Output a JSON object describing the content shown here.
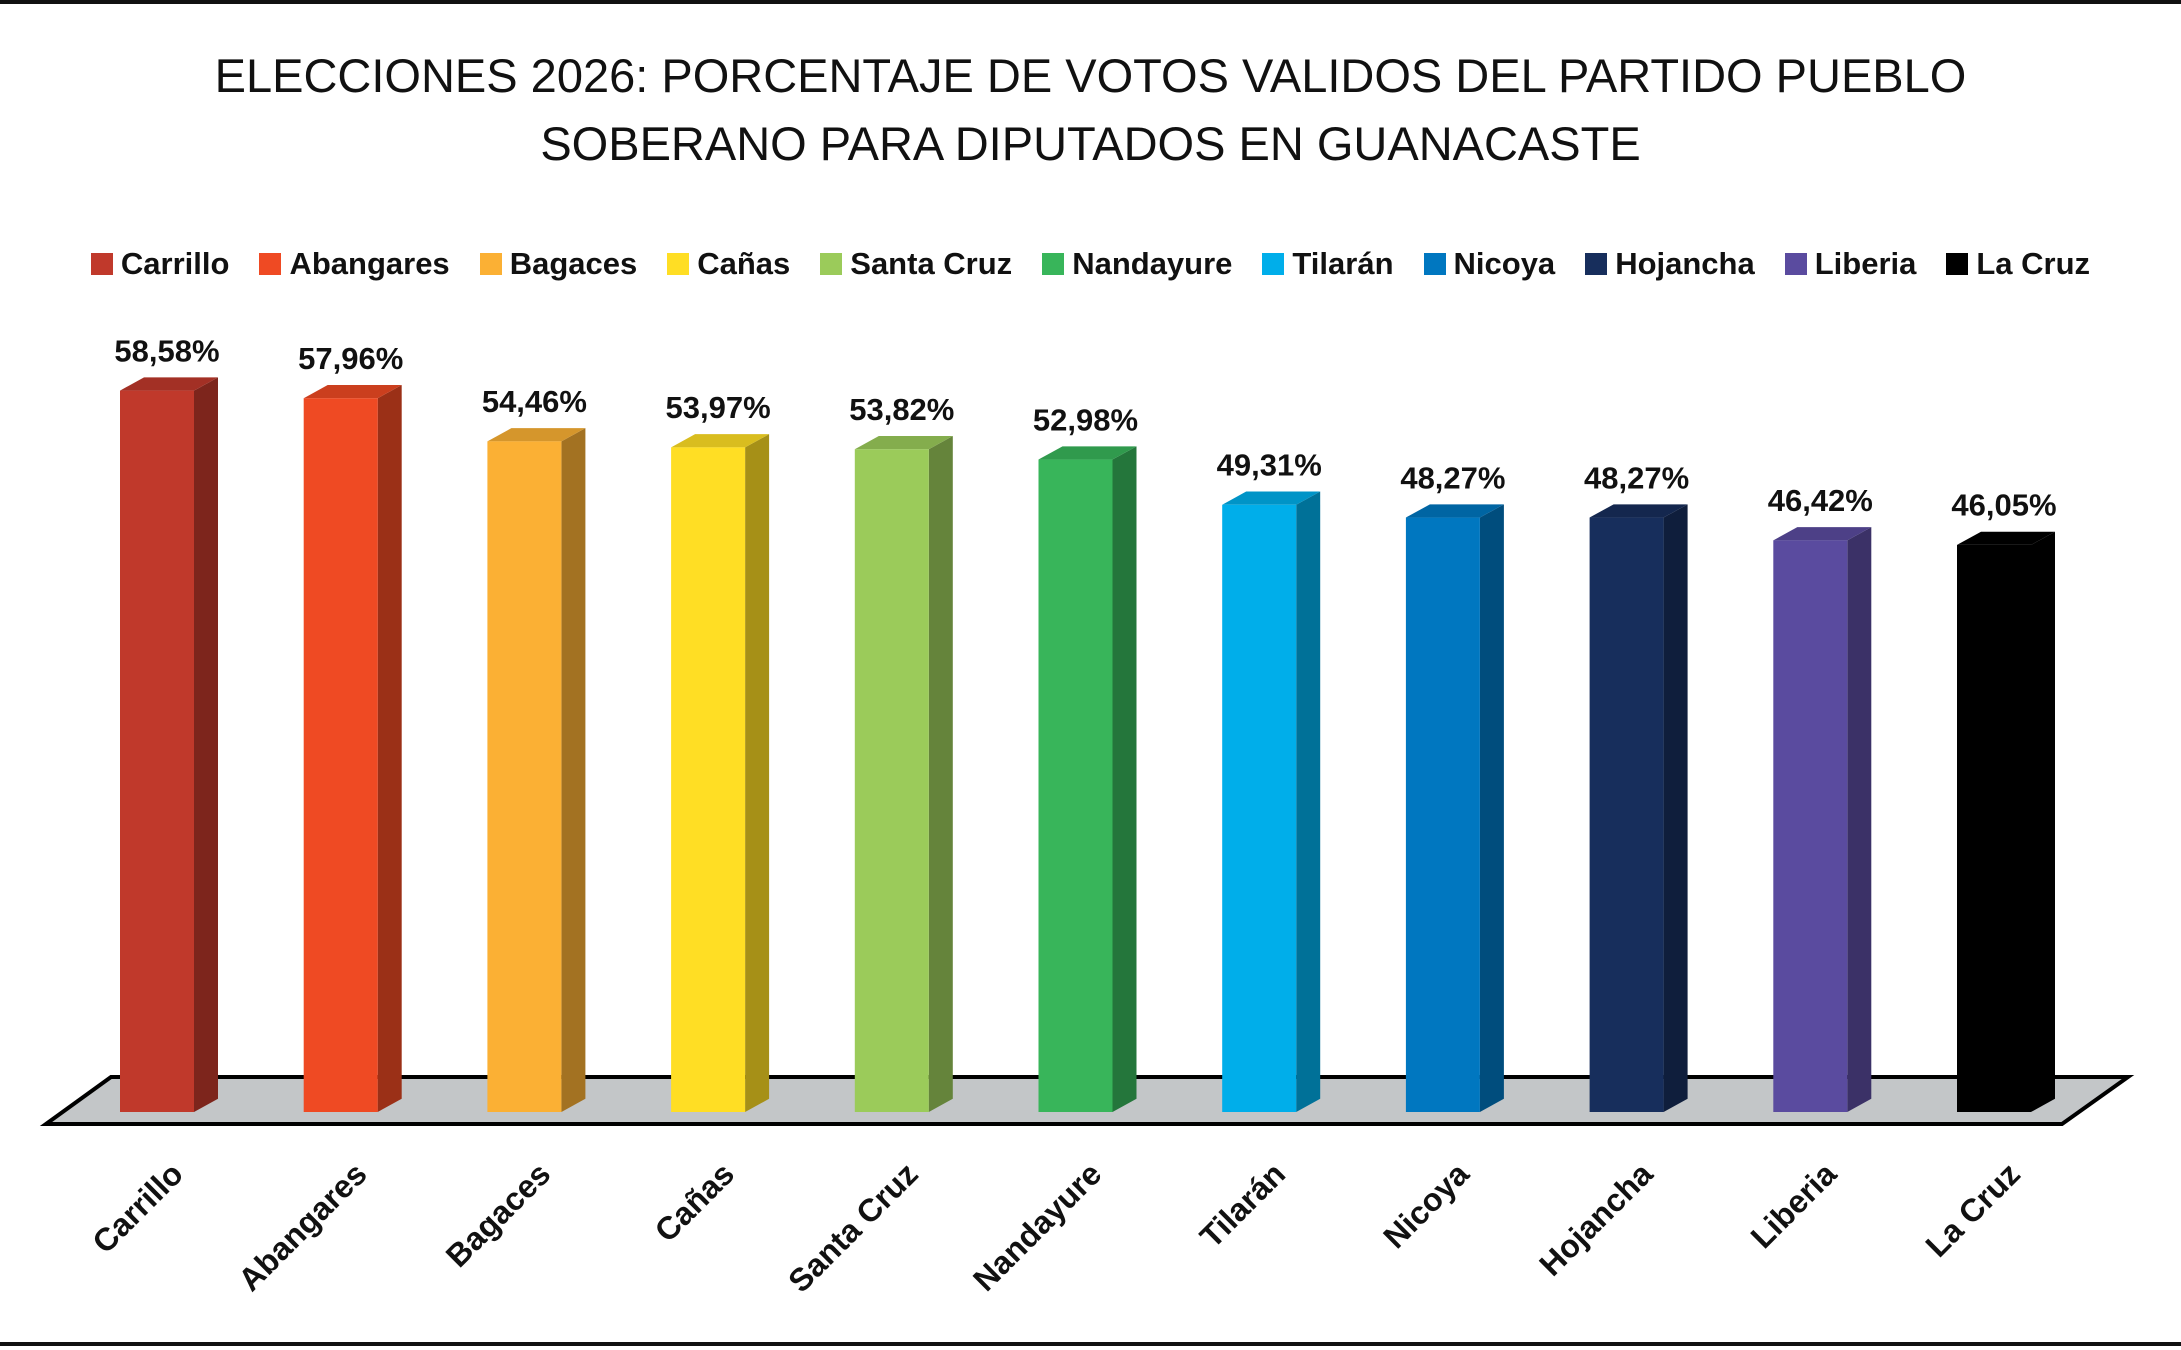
{
  "chart_data": {
    "type": "bar",
    "title_lines": [
      "ELECCIONES 2026: PORCENTAJE DE VOTOS VALIDOS DEL PARTIDO PUEBLO",
      "SOBERANO PARA DIPUTADOS EN GUANACASTE"
    ],
    "categories": [
      "Carrillo",
      "Abangares",
      "Bagaces",
      "Cañas",
      "Santa Cruz",
      "Nandayure",
      "Tilarán",
      "Nicoya",
      "Hojancha",
      "Liberia",
      "La Cruz"
    ],
    "values": [
      58.58,
      57.96,
      54.46,
      53.97,
      53.82,
      52.98,
      49.31,
      48.27,
      48.27,
      46.42,
      46.05
    ],
    "labels": [
      "58,58%",
      "57,96%",
      "54,46%",
      "53,97%",
      "53,82%",
      "52,98%",
      "49,31%",
      "48,27%",
      "48,27%",
      "46,42%",
      "46,05%"
    ],
    "colors": [
      "#c0392b",
      "#ef4a23",
      "#fbb034",
      "#ffde24",
      "#9bcb5a",
      "#38b55a",
      "#00aeea",
      "#0077c0",
      "#172e5c",
      "#5a4b9f",
      "#000000"
    ],
    "legend": [
      "Carrillo",
      "Abangares",
      "Bagaces",
      "Cañas",
      "Santa Cruz",
      "Nandayure",
      "Tilarán",
      "Nicoya",
      "Hojancha",
      "Liberia",
      "La Cruz"
    ],
    "legend_position": "top",
    "xlabel": "",
    "ylabel": "",
    "ylim": [
      0,
      60
    ],
    "grid": false,
    "floor_color": "#c3c6c8"
  }
}
